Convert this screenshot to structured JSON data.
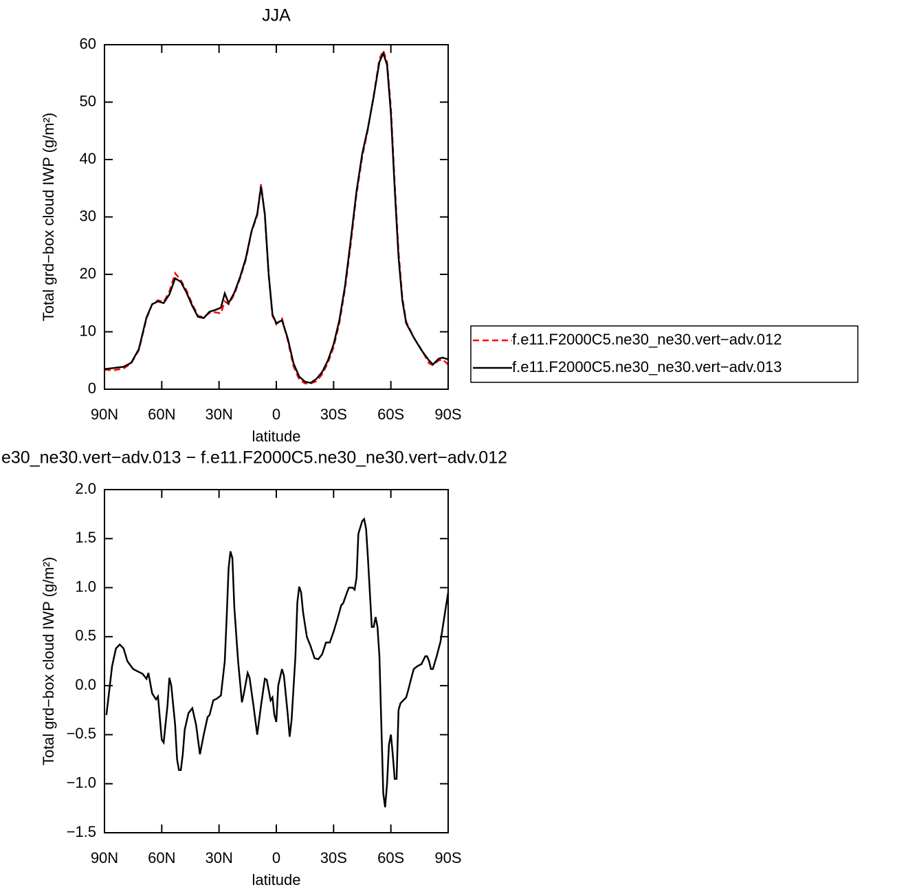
{
  "chart_data": [
    {
      "type": "line",
      "title": "JJA",
      "xlabel": "latitude",
      "ylabel": "Total grd−box cloud IWP (g/m²)",
      "xlim": [
        90,
        -90
      ],
      "xticks": [
        {
          "value": 90,
          "label": "90N"
        },
        {
          "value": 60,
          "label": "60N"
        },
        {
          "value": 30,
          "label": "30N"
        },
        0,
        {
          "value": -30,
          "label": "30S"
        },
        {
          "value": -60,
          "label": "60S"
        },
        {
          "value": -90,
          "label": "90S"
        }
      ],
      "ylim": [
        0,
        60
      ],
      "yticks": [
        0,
        10,
        20,
        30,
        40,
        50,
        60
      ],
      "legend": "right",
      "x": [
        90,
        85,
        80,
        76,
        72,
        68,
        65,
        62,
        59,
        56,
        53,
        50,
        47,
        44,
        41,
        38,
        35,
        32,
        29,
        27,
        25,
        22,
        19,
        16,
        13,
        10,
        8,
        6,
        4,
        2,
        0,
        -3,
        -6,
        -9,
        -12,
        -15,
        -18,
        -21,
        -24,
        -27,
        -30,
        -33,
        -36,
        -39,
        -42,
        -45,
        -48,
        -51,
        -54,
        -56,
        -58,
        -60,
        -62,
        -64,
        -66,
        -68,
        -72,
        -76,
        -80,
        -82,
        -85,
        -87,
        -90
      ],
      "series": [
        {
          "name": "f.e11.F2000C5.ne30_ne30.vert−adv.012",
          "color": "#ff0000",
          "line_style": "dashed",
          "values": [
            3.4,
            3.3,
            3.6,
            4.5,
            6.8,
            12.3,
            14.8,
            15.5,
            15.2,
            17.0,
            20.2,
            19.0,
            17.2,
            14.8,
            12.8,
            12.5,
            13.3,
            13.4,
            13.2,
            15.3,
            14.8,
            16.5,
            19.3,
            22.5,
            27.4,
            30.3,
            35.7,
            30.3,
            19.8,
            12.8,
            11.3,
            12.3,
            8.5,
            4.0,
            1.7,
            1.0,
            1.0,
            1.4,
            2.6,
            4.6,
            7.3,
            11.5,
            17.5,
            25.3,
            34.0,
            40.5,
            45.3,
            51.2,
            57.5,
            59.0,
            57.0,
            49.0,
            36.0,
            24.0,
            16.0,
            11.8,
            9.0,
            6.9,
            4.5,
            4.2,
            5.0,
            5.2,
            4.3
          ]
        },
        {
          "name": "f.e11.F2000C5.ne30_ne30.vert−adv.013",
          "color": "#000000",
          "line_style": "solid",
          "values": [
            3.5,
            3.7,
            3.9,
            4.6,
            7.0,
            12.5,
            14.8,
            15.3,
            15.0,
            16.5,
            19.3,
            18.7,
            16.8,
            14.5,
            12.6,
            12.4,
            13.5,
            13.8,
            14.2,
            16.7,
            15.0,
            16.8,
            19.5,
            22.8,
            27.5,
            30.5,
            35.3,
            30.5,
            20.0,
            13.0,
            11.5,
            12.0,
            8.8,
            4.5,
            2.2,
            1.3,
            1.1,
            1.8,
            3.0,
            5.0,
            7.8,
            12.0,
            18.0,
            26.0,
            34.5,
            41.0,
            45.5,
            51.0,
            57.0,
            58.5,
            56.5,
            48.0,
            35.0,
            23.0,
            15.5,
            11.5,
            9.0,
            6.8,
            5.0,
            4.3,
            5.3,
            5.5,
            5.2
          ]
        }
      ]
    },
    {
      "type": "line",
      "title": "e30_ne30.vert−adv.013 − f.e11.F2000C5.ne30_ne30.vert−adv.012",
      "xlabel": "latitude",
      "ylabel": "Total grd−box cloud IWP (g/m²)",
      "xlim": [
        90,
        -90
      ],
      "xticks": [
        {
          "value": 90,
          "label": "90N"
        },
        {
          "value": 60,
          "label": "60N"
        },
        {
          "value": 30,
          "label": "30N"
        },
        0,
        {
          "value": -30,
          "label": "30S"
        },
        {
          "value": -60,
          "label": "60S"
        },
        {
          "value": -90,
          "label": "90S"
        }
      ],
      "ylim": [
        -1.5,
        2.0
      ],
      "yticks": [
        {
          "value": -1.5,
          "label": "−1.5"
        },
        {
          "value": -1.0,
          "label": "−1.0"
        },
        {
          "value": -0.5,
          "label": "−0.5"
        },
        {
          "value": 0,
          "label": "0.0"
        },
        0.5,
        {
          "value": 1.0,
          "label": "1.0"
        },
        1.5,
        {
          "value": 2.0,
          "label": "2.0"
        }
      ],
      "x": [
        89,
        86,
        84,
        82,
        80,
        78,
        75,
        73,
        70,
        68,
        67,
        65,
        63,
        62,
        60,
        59,
        57,
        56,
        55,
        53,
        52,
        51,
        50,
        49,
        48,
        46,
        44,
        42,
        40,
        38,
        36,
        35,
        33,
        31,
        29,
        27,
        26,
        25,
        24,
        23,
        22,
        20,
        18,
        17,
        15,
        14,
        12,
        10,
        8,
        6,
        5,
        3,
        2,
        1,
        0,
        -1,
        -3,
        -4,
        -6,
        -7,
        -8,
        -10,
        -11,
        -12,
        -13,
        -14,
        -16,
        -18,
        -20,
        -22,
        -24,
        -26,
        -28,
        -30,
        -32,
        -34,
        -35,
        -37,
        -38,
        -40,
        -41,
        -42,
        -43,
        -45,
        -46,
        -47,
        -48,
        -50,
        -51,
        -52,
        -53,
        -54,
        -55,
        -56,
        -57,
        -58,
        -59,
        -60,
        -61,
        -62,
        -63,
        -64,
        -65,
        -67,
        -68,
        -69,
        -71,
        -72,
        -74,
        -76,
        -78,
        -79,
        -80,
        -81,
        -82,
        -84,
        -86,
        -88,
        -90
      ],
      "series": [
        {
          "color": "#000000",
          "values": [
            -0.3,
            0.2,
            0.38,
            0.42,
            0.38,
            0.25,
            0.17,
            0.15,
            0.12,
            0.07,
            0.13,
            -0.08,
            -0.14,
            -0.11,
            -0.55,
            -0.58,
            -0.2,
            0.08,
            0.0,
            -0.4,
            -0.75,
            -0.86,
            -0.86,
            -0.7,
            -0.45,
            -0.28,
            -0.23,
            -0.4,
            -0.7,
            -0.5,
            -0.32,
            -0.3,
            -0.15,
            -0.13,
            -0.1,
            0.25,
            0.7,
            1.2,
            1.37,
            1.3,
            0.8,
            0.25,
            -0.17,
            -0.08,
            0.13,
            0.08,
            -0.2,
            -0.5,
            -0.2,
            0.07,
            0.06,
            -0.15,
            -0.12,
            -0.3,
            -0.37,
            0.0,
            0.17,
            0.1,
            -0.3,
            -0.52,
            -0.35,
            0.3,
            0.85,
            1.01,
            0.95,
            0.75,
            0.5,
            0.4,
            0.28,
            0.27,
            0.32,
            0.44,
            0.44,
            0.55,
            0.68,
            0.82,
            0.84,
            0.95,
            1.0,
            1.0,
            0.98,
            1.1,
            1.55,
            1.68,
            1.7,
            1.6,
            1.3,
            0.6,
            0.6,
            0.7,
            0.6,
            0.3,
            -0.4,
            -1.1,
            -1.24,
            -1.0,
            -0.6,
            -0.5,
            -0.7,
            -0.95,
            -0.95,
            -0.25,
            -0.18,
            -0.14,
            -0.12,
            -0.05,
            0.1,
            0.17,
            0.2,
            0.22,
            0.3,
            0.3,
            0.25,
            0.17,
            0.17,
            0.3,
            0.45,
            0.7,
            0.95
          ]
        }
      ]
    }
  ]
}
